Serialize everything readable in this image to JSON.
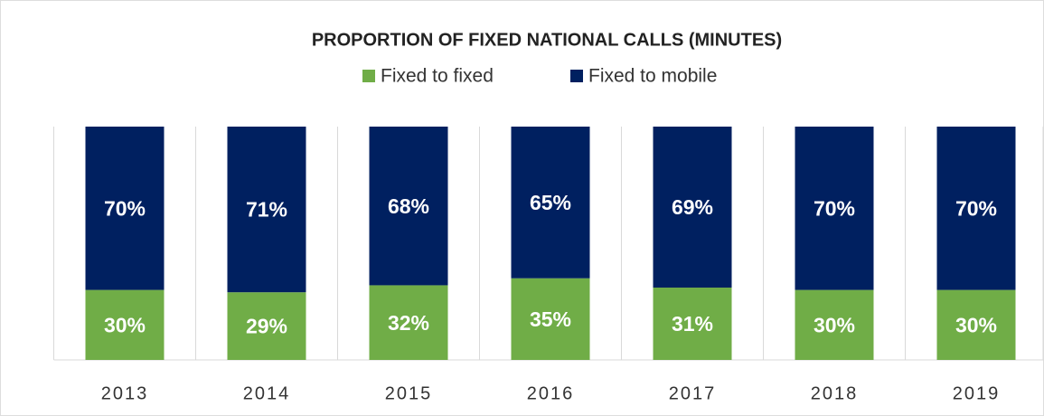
{
  "chart_data": {
    "type": "stacked_bar",
    "title": "PROPORTION OF FIXED NATIONAL CALLS (MINUTES)",
    "categories": [
      "2013",
      "2014",
      "2015",
      "2016",
      "2017",
      "2018",
      "2019"
    ],
    "series": [
      {
        "name": "Fixed to fixed",
        "color": "#70ad47",
        "values": [
          30,
          29,
          32,
          35,
          31,
          30,
          30
        ],
        "value_labels": [
          "30%",
          "29%",
          "32%",
          "35%",
          "31%",
          "30%",
          "30%"
        ]
      },
      {
        "name": "Fixed to mobile",
        "color": "#002060",
        "values": [
          70,
          71,
          68,
          65,
          69,
          70,
          70
        ],
        "value_labels": [
          "70%",
          "71%",
          "68%",
          "65%",
          "69%",
          "70%",
          "70%"
        ]
      }
    ],
    "ylim": [
      0,
      100
    ],
    "legend": "top"
  }
}
